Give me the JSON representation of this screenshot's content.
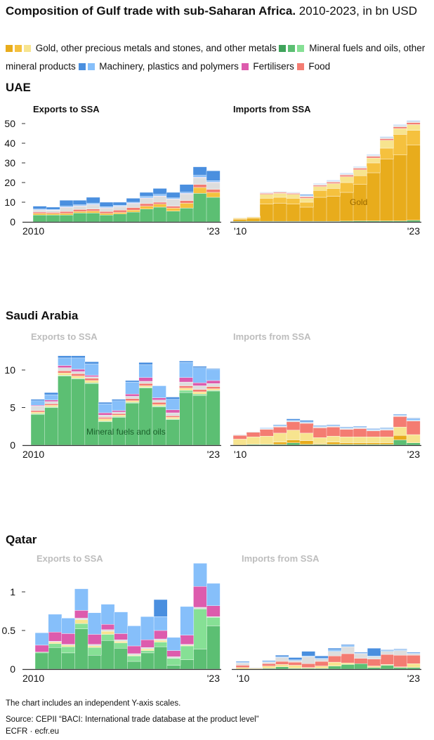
{
  "title": {
    "bold": "Composition of Gulf trade with sub-Saharan Africa.",
    "rest": " 2010-2023, in bn USD"
  },
  "legend": [
    {
      "label": "Gold, other precious metals and stones, and other metals",
      "colors": [
        "#E8AC1C",
        "#F5C13E",
        "#F7E48F"
      ]
    },
    {
      "label": "Mineral fuels and oils, other mineral products",
      "colors": [
        "#3FA35B",
        "#5CBF73",
        "#86E095"
      ]
    },
    {
      "label": "Machinery, plastics and polymers",
      "colors": [
        "#4A8FDF",
        "#86BFFA"
      ]
    },
    {
      "label": "Fertilisers",
      "colors": [
        "#DD5BAD"
      ]
    },
    {
      "label": "Food",
      "colors": [
        "#F47C72"
      ]
    }
  ],
  "series_colors": {
    "fuels": "#5CBF73",
    "fuels_light": "#86E095",
    "gold": "#E8AC1C",
    "gold_mid": "#F5C13E",
    "gold_light": "#F7E48F",
    "food": "#F47C72",
    "other": "#DDDDDD",
    "fert": "#DD5BAD",
    "mach_light": "#86BFFA",
    "mach_dark": "#4A8FDF"
  },
  "countries": [
    {
      "name": "UAE",
      "exports_label": "Exports to SSA",
      "imports_label": "Imports from SSA"
    },
    {
      "name": "Saudi Arabia",
      "exports_label": "Exports to SSA",
      "imports_label": "Imports from SSA"
    },
    {
      "name": "Qatar",
      "exports_label": "Exports to SSA",
      "imports_label": "Imports from SSA"
    }
  ],
  "x_labels": {
    "exports_start": "2010",
    "imports_start": "'10",
    "end": "'23"
  },
  "annotations": {
    "gold": "Gold",
    "fuels": "Mineral fuels and oils"
  },
  "chart_data": [
    {
      "type": "bar",
      "stacked": true,
      "panel": "UAE exports",
      "x": [
        2010,
        2011,
        2012,
        2013,
        2014,
        2015,
        2016,
        2017,
        2018,
        2019,
        2020,
        2021,
        2022,
        2023
      ],
      "yticks": [
        0,
        10,
        20,
        30,
        40,
        50
      ],
      "ylim": [
        0,
        55
      ],
      "series": {
        "fuels": [
          3.5,
          3.5,
          3.5,
          4.5,
          4.5,
          3.5,
          4,
          5,
          6.5,
          7.5,
          5.5,
          7,
          14.5,
          12.5
        ],
        "gold_mid": [
          0.8,
          0.7,
          0.8,
          0.8,
          1,
          0.8,
          0.8,
          1,
          1.5,
          1.5,
          1.5,
          2.5,
          3,
          2.5
        ],
        "food": [
          0.7,
          0.6,
          1,
          1,
          1,
          1,
          1.2,
          1.3,
          1.3,
          1,
          1,
          1.3,
          1.5,
          1.5
        ],
        "other": [
          1,
          1,
          2,
          1.7,
          2.2,
          1.7,
          1.8,
          2,
          2.7,
          3,
          3.5,
          3.5,
          3.5,
          3.5
        ],
        "fert": [
          0.2,
          0.2,
          0.2,
          0.2,
          0.2,
          0.2,
          0.2,
          0.2,
          0.2,
          0.2,
          0.2,
          0.2,
          0.2,
          0.2
        ],
        "mach_light": [
          0.3,
          0.3,
          0.5,
          0.5,
          0.6,
          0.5,
          0.5,
          0.5,
          0.8,
          0.8,
          0.5,
          0.6,
          1,
          0.8
        ],
        "mach_dark": [
          1.5,
          1.2,
          3,
          2.3,
          3,
          2.3,
          1.5,
          2,
          2,
          3,
          2.8,
          3.9,
          4.3,
          5
        ]
      }
    },
    {
      "type": "bar",
      "stacked": true,
      "panel": "UAE imports",
      "x": [
        2010,
        2011,
        2012,
        2013,
        2014,
        2015,
        2016,
        2017,
        2018,
        2019,
        2020,
        2021,
        2022,
        2023
      ],
      "yticks": [
        0,
        10,
        20,
        30,
        40,
        50
      ],
      "ylim": [
        0,
        55
      ],
      "series": {
        "fuels": [
          0.3,
          0.3,
          0.3,
          0.3,
          0.3,
          0.3,
          0.3,
          0.3,
          0.4,
          0.5,
          0.5,
          0.5,
          0.5,
          0.8
        ],
        "gold": [
          1,
          1.5,
          8.7,
          9.2,
          8.7,
          7.2,
          12.2,
          12.7,
          14.6,
          18.5,
          24.5,
          31.5,
          33.5,
          38.2
        ],
        "gold_mid": [
          0.4,
          0.5,
          3,
          3,
          3,
          2.5,
          3.5,
          4,
          5,
          4.5,
          5,
          5.5,
          10.5,
          7.5
        ],
        "gold_light": [
          0.3,
          0.3,
          2,
          2,
          2,
          2,
          2,
          2.5,
          3,
          3,
          2.5,
          4,
          3,
          3
        ],
        "food": [
          0.1,
          0.1,
          0.5,
          0.5,
          0.5,
          0.7,
          0.6,
          0.7,
          0.8,
          0.8,
          0.8,
          0.8,
          0.8,
          1
        ],
        "other": [
          0.1,
          0.1,
          0.4,
          0.4,
          0.4,
          0.5,
          0.5,
          0.5,
          0.5,
          0.5,
          0.5,
          0.7,
          0.7,
          0.7
        ],
        "mach_light": [
          0.1,
          0.1,
          0.2,
          0.2,
          0.2,
          0.4,
          0.2,
          0.3,
          0.3,
          0.2,
          0.3,
          0.3,
          0.3,
          0.3
        ],
        "mach_dark": [
          0.1,
          0.1,
          0.1,
          0.1,
          0.1,
          0.4,
          0.2,
          0.2,
          0.2,
          0.2,
          0.2,
          0.2,
          0.2,
          0.2
        ]
      }
    },
    {
      "type": "bar",
      "stacked": true,
      "panel": "Saudi Arabia exports",
      "x": [
        2010,
        2011,
        2012,
        2013,
        2014,
        2015,
        2016,
        2017,
        2018,
        2019,
        2020,
        2021,
        2022,
        2023
      ],
      "yticks": [
        0,
        5,
        10
      ],
      "ylim": [
        0,
        13
      ],
      "series": {
        "fuels": [
          4.1,
          5,
          9.2,
          8.8,
          8.2,
          3.1,
          3.7,
          5.6,
          7.6,
          5.1,
          3.4,
          7,
          6.6,
          7.2
        ],
        "fuels_light": [
          0.1,
          0.1,
          0.1,
          0.1,
          0.1,
          0.1,
          0.1,
          0.1,
          0.1,
          0.1,
          0.1,
          0.3,
          0.2,
          0.1
        ],
        "gold_light": [
          0.2,
          0.2,
          0.3,
          0.3,
          0.3,
          0.3,
          0.2,
          0.2,
          0.2,
          0.2,
          0.2,
          0.3,
          0.3,
          0.2
        ],
        "food": [
          0.2,
          0.2,
          0.3,
          0.3,
          0.3,
          0.2,
          0.2,
          0.3,
          0.3,
          0.3,
          0.2,
          0.3,
          0.3,
          0.3
        ],
        "other": [
          0.6,
          0.3,
          0.4,
          0.3,
          0.2,
          0.3,
          0.2,
          0.3,
          0.3,
          0.3,
          0.4,
          0.5,
          0.5,
          0.4
        ],
        "fert": [
          0.1,
          0.2,
          0.3,
          0.3,
          0.2,
          0.3,
          0.2,
          0.3,
          0.5,
          0.3,
          0.4,
          0.6,
          0.4,
          0.4
        ],
        "mach_light": [
          0.6,
          0.7,
          1.0,
          1.5,
          1.5,
          1.2,
          1.3,
          1.6,
          1.7,
          1.6,
          1.4,
          2.0,
          2.0,
          1.5
        ],
        "mach_dark": [
          0.2,
          0.3,
          0.3,
          0.3,
          0.3,
          0.2,
          0.2,
          0.2,
          0.3,
          0,
          0.3,
          0.2,
          0.2,
          0.1
        ]
      }
    },
    {
      "type": "bar",
      "stacked": true,
      "panel": "Saudi Arabia imports",
      "x": [
        2010,
        2011,
        2012,
        2013,
        2014,
        2015,
        2016,
        2017,
        2018,
        2019,
        2020,
        2021,
        2022,
        2023
      ],
      "yticks": [
        0,
        5,
        10
      ],
      "ylim": [
        0,
        13
      ],
      "series": {
        "fuels": [
          0,
          0.1,
          0.1,
          0.1,
          0.3,
          0.1,
          0.1,
          0.1,
          0.1,
          0.1,
          0.1,
          0.1,
          0.7,
          0.3
        ],
        "gold": [
          0,
          0,
          0,
          0.3,
          0.4,
          0.5,
          0.1,
          0.3,
          0.2,
          0.2,
          0.2,
          0.2,
          0.6,
          0
        ],
        "gold_light": [
          0.8,
          1,
          1.1,
          1.2,
          1.3,
          1,
          0.8,
          0.8,
          0.8,
          0.8,
          0.8,
          0.8,
          1.1,
          1.1
        ],
        "food": [
          0.5,
          0.6,
          0.9,
          0.8,
          1.1,
          1.3,
          1.3,
          1.2,
          1.0,
          1.1,
          0.8,
          0.9,
          1.4,
          1.8
        ],
        "other": [
          0.1,
          0.1,
          0.1,
          0.1,
          0.1,
          0.1,
          0.1,
          0.1,
          0.1,
          0.1,
          0.1,
          0.1,
          0.1,
          0.1
        ],
        "mach_light": [
          0,
          0,
          0.1,
          0.1,
          0.1,
          0.1,
          0.1,
          0.1,
          0.1,
          0.1,
          0.1,
          0.1,
          0.1,
          0.2
        ],
        "mach_dark": [
          0,
          0,
          0,
          0.1,
          0.2,
          0.2,
          0.1,
          0.1,
          0.1,
          0.1,
          0.1,
          0.1,
          0.1,
          0.1
        ]
      }
    },
    {
      "type": "bar",
      "stacked": true,
      "panel": "Qatar exports",
      "x": [
        2010,
        2011,
        2012,
        2013,
        2014,
        2015,
        2016,
        2017,
        2018,
        2019,
        2020,
        2021,
        2022,
        2023
      ],
      "yticks": [
        0,
        0.5,
        1
      ],
      "ylim": [
        0,
        1.4
      ],
      "series": {
        "fuels": [
          0.21,
          0.28,
          0.21,
          0.52,
          0.18,
          0.37,
          0.27,
          0.1,
          0.21,
          0.29,
          0.05,
          0.12,
          0.26,
          0.56
        ],
        "fuels_light": [
          0.01,
          0.05,
          0.08,
          0.07,
          0.1,
          0.08,
          0.07,
          0.07,
          0.03,
          0.06,
          0.09,
          0.18,
          0.52,
          0.11
        ],
        "gold_light": [
          0,
          0.02,
          0.02,
          0.05,
          0.02,
          0.04,
          0.02,
          0.01,
          0.02,
          0.02,
          0,
          0.01,
          0,
          0
        ],
        "fert": [
          0.09,
          0.12,
          0.14,
          0.1,
          0.13,
          0.07,
          0.08,
          0.1,
          0.1,
          0.11,
          0.08,
          0.12,
          0.27,
          0.14
        ],
        "other": [
          0,
          0.01,
          0.01,
          0.02,
          0.02,
          0.02,
          0.02,
          0.02,
          0.02,
          0.02,
          0.02,
          0.01,
          0.02,
          0.01
        ],
        "mach_light": [
          0.16,
          0.23,
          0.2,
          0.28,
          0.28,
          0.26,
          0.28,
          0.26,
          0.3,
          0.18,
          0.17,
          0.37,
          0.3,
          0.29
        ],
        "mach_dark": [
          0,
          0,
          0,
          0,
          0,
          0,
          0,
          0,
          0,
          0.22,
          0,
          0,
          0,
          0
        ]
      }
    },
    {
      "type": "bar",
      "stacked": true,
      "panel": "Qatar imports",
      "x": [
        2010,
        2011,
        2012,
        2013,
        2014,
        2015,
        2016,
        2017,
        2018,
        2019,
        2020,
        2021,
        2022,
        2023
      ],
      "yticks": [
        0,
        0.5,
        1
      ],
      "ylim": [
        0,
        1.4
      ],
      "series": {
        "fuels": [
          0,
          0,
          0.01,
          0.03,
          0.01,
          0.01,
          0.01,
          0.04,
          0.06,
          0.07,
          0.02,
          0.05,
          0.02,
          0.02
        ],
        "gold_light": [
          0.02,
          0.01,
          0.03,
          0.03,
          0.04,
          0.01,
          0.03,
          0.05,
          0.02,
          0,
          0.02,
          0.01,
          0.01,
          0.05
        ],
        "food": [
          0.03,
          0,
          0.03,
          0.04,
          0.04,
          0.05,
          0.06,
          0.08,
          0.12,
          0.07,
          0.09,
          0.13,
          0.15,
          0.11
        ],
        "other": [
          0.03,
          0.01,
          0.02,
          0.05,
          0.02,
          0.09,
          0.03,
          0.06,
          0.09,
          0.06,
          0.03,
          0.04,
          0.06,
          0.02
        ],
        "mach_light": [
          0.01,
          0,
          0.01,
          0.01,
          0.01,
          0.01,
          0.01,
          0.02,
          0.02,
          0.01,
          0.01,
          0.01,
          0.01,
          0.01
        ],
        "mach_dark": [
          0.01,
          0,
          0.01,
          0.02,
          0.03,
          0.06,
          0.03,
          0.02,
          0.01,
          0.01,
          0.1,
          0.01,
          0.01,
          0.01
        ]
      }
    }
  ],
  "footer": {
    "note": "The chart includes an independent Y-axis scales.",
    "source": "Source: CEPII “BACI: International trade database at the product level”",
    "credit": "ECFR · ecfr.eu"
  }
}
